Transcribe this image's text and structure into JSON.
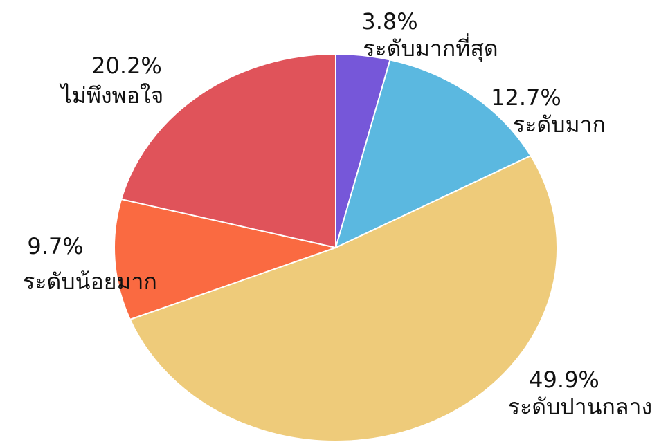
{
  "chart_data": {
    "type": "pie",
    "categories": [
      "ระดับมากที่สุด",
      "ระดับมาก",
      "ระดับปานกลาง",
      "ระดับน้อยมาก",
      "ไม่พึงพอใจ"
    ],
    "values": [
      3.8,
      12.7,
      49.9,
      9.7,
      20.2
    ],
    "value_labels": [
      "3.8%",
      "12.7%",
      "49.9%",
      "9.7%",
      "20.2%"
    ],
    "colors": [
      "#7657d9",
      "#5bb8e0",
      "#eecb7a",
      "#fa6a41",
      "#e0535a"
    ]
  }
}
